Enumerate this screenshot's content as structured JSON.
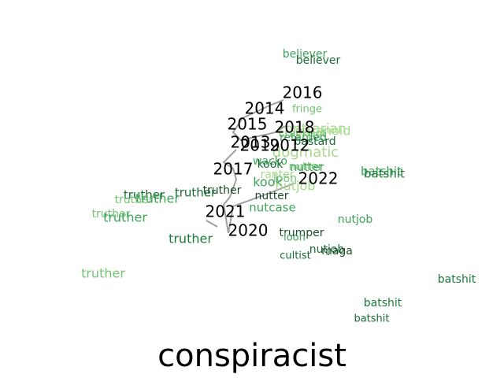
{
  "title": "conspiracist",
  "colors": {
    "year_label": "#000000",
    "trajectory": "#a0a0a0",
    "word_dark": "#1a7a3c",
    "word_mid": "#3fa45a",
    "word_light": "#74c476",
    "word_pale": "#a6d98a"
  },
  "years": [
    {
      "id": "y2016",
      "label": "2016"
    },
    {
      "id": "y2014",
      "label": "2014"
    },
    {
      "id": "y2015",
      "label": "2015"
    },
    {
      "id": "y2018",
      "label": "2018"
    },
    {
      "id": "y2013",
      "label": "2013"
    },
    {
      "id": "y2019",
      "label": "2019"
    },
    {
      "id": "y2012",
      "label": "2012"
    },
    {
      "id": "y2017",
      "label": "2017"
    },
    {
      "id": "y2022",
      "label": "2022"
    },
    {
      "id": "y2021",
      "label": "2021"
    },
    {
      "id": "y2020",
      "label": "2020"
    }
  ],
  "words": [
    {
      "id": "w1",
      "text": "believer",
      "color": "#3fa45a"
    },
    {
      "id": "w2",
      "text": "believer",
      "color": "#1a6b35"
    },
    {
      "id": "w3",
      "text": "fringe",
      "color": "#74c476"
    },
    {
      "id": "w4",
      "text": "contrarian",
      "color": "#a6d98a"
    },
    {
      "id": "w5",
      "text": "crackpot",
      "color": "#74c476"
    },
    {
      "id": "w6",
      "text": "paranoid",
      "color": "#a6d98a"
    },
    {
      "id": "w7",
      "text": "retarded",
      "color": "#3fa45a"
    },
    {
      "id": "w8",
      "text": "bastard",
      "color": "#1a6b35"
    },
    {
      "id": "w9",
      "text": "dogmatic",
      "color": "#a6d98a"
    },
    {
      "id": "w10",
      "text": "wacko",
      "color": "#3fa45a"
    },
    {
      "id": "w11",
      "text": "kook",
      "color": "#1a6b35"
    },
    {
      "id": "w12",
      "text": "nutter",
      "color": "#74c476"
    },
    {
      "id": "w13",
      "text": "nutter",
      "color": "#3fa45a"
    },
    {
      "id": "w14",
      "text": "ranter",
      "color": "#a6d98a"
    },
    {
      "id": "w15",
      "text": "loon",
      "color": "#74c476"
    },
    {
      "id": "w16",
      "text": "kook",
      "color": "#3fa45a"
    },
    {
      "id": "w17",
      "text": "nutjob",
      "color": "#a6d98a"
    },
    {
      "id": "w18",
      "text": "nutter",
      "color": "#1a4d2a"
    },
    {
      "id": "w19",
      "text": "nutcase",
      "color": "#3fa45a"
    },
    {
      "id": "w20",
      "text": "batshit",
      "color": "#3fa45a"
    },
    {
      "id": "w21",
      "text": "batshit",
      "color": "#1a7a3c"
    },
    {
      "id": "w22",
      "text": "truther",
      "color": "#1a6b35"
    },
    {
      "id": "w23",
      "text": "truther",
      "color": "#1a6b35"
    },
    {
      "id": "w24",
      "text": "truther",
      "color": "#3fa45a"
    },
    {
      "id": "w25",
      "text": "truther",
      "color": "#1a4d2a"
    },
    {
      "id": "w26",
      "text": "truther",
      "color": "#74c476"
    },
    {
      "id": "w27",
      "text": "truther",
      "color": "#74c476"
    },
    {
      "id": "w28",
      "text": "truther",
      "color": "#3fa45a"
    },
    {
      "id": "w29",
      "text": "truther",
      "color": "#1a7a3c"
    },
    {
      "id": "w30",
      "text": "nutjob",
      "color": "#3fa45a"
    },
    {
      "id": "w31",
      "text": "trumper",
      "color": "#1a4d2a"
    },
    {
      "id": "w32",
      "text": "loon",
      "color": "#3fa45a"
    },
    {
      "id": "w33",
      "text": "nutjob",
      "color": "#1a6b35"
    },
    {
      "id": "w34",
      "text": "maga",
      "color": "#1a4d2a"
    },
    {
      "id": "w35",
      "text": "cultist",
      "color": "#1a6b35"
    },
    {
      "id": "w36",
      "text": "truther",
      "color": "#74c476"
    },
    {
      "id": "w37",
      "text": "batshit",
      "color": "#1a7a3c"
    },
    {
      "id": "w38",
      "text": "batshit",
      "color": "#1a7a3c"
    },
    {
      "id": "w39",
      "text": "batshit",
      "color": "#1a6b35"
    }
  ]
}
